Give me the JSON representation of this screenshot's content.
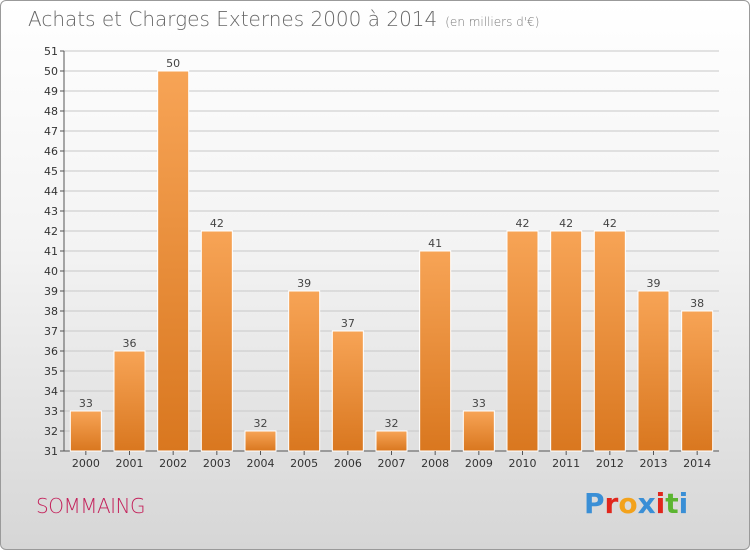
{
  "header": {
    "title": "Achats et Charges Externes 2000 à 2014",
    "unit": "(en milliers d'€)"
  },
  "footer": {
    "commune": "SOMMAING",
    "logo": "Proxiti"
  },
  "colors": {
    "bar_light": "#f7a456",
    "bar_dark": "#d9771f",
    "commune": "#c4215b",
    "logo_letters": [
      "#3a8fd6",
      "#e1261c",
      "#f3a21b",
      "#3a8fd6",
      "#e1261c",
      "#5cb531",
      "#3a8fd6"
    ]
  },
  "chart_data": {
    "type": "bar",
    "title": "Achats et Charges Externes 2000 à 2014",
    "subtitle": "(en milliers d'€)",
    "xlabel": "",
    "ylabel": "",
    "categories": [
      "2000",
      "2001",
      "2002",
      "2003",
      "2004",
      "2005",
      "2006",
      "2007",
      "2008",
      "2009",
      "2010",
      "2011",
      "2012",
      "2013",
      "2014"
    ],
    "values": [
      33,
      36,
      50,
      42,
      32,
      39,
      37,
      32,
      41,
      33,
      42,
      42,
      42,
      39,
      38
    ],
    "ylim": [
      31,
      51
    ],
    "yticks": [
      31,
      32,
      33,
      34,
      35,
      36,
      37,
      38,
      39,
      40,
      41,
      42,
      43,
      44,
      45,
      46,
      47,
      48,
      49,
      50,
      51
    ],
    "grid": true,
    "legend": "none"
  }
}
